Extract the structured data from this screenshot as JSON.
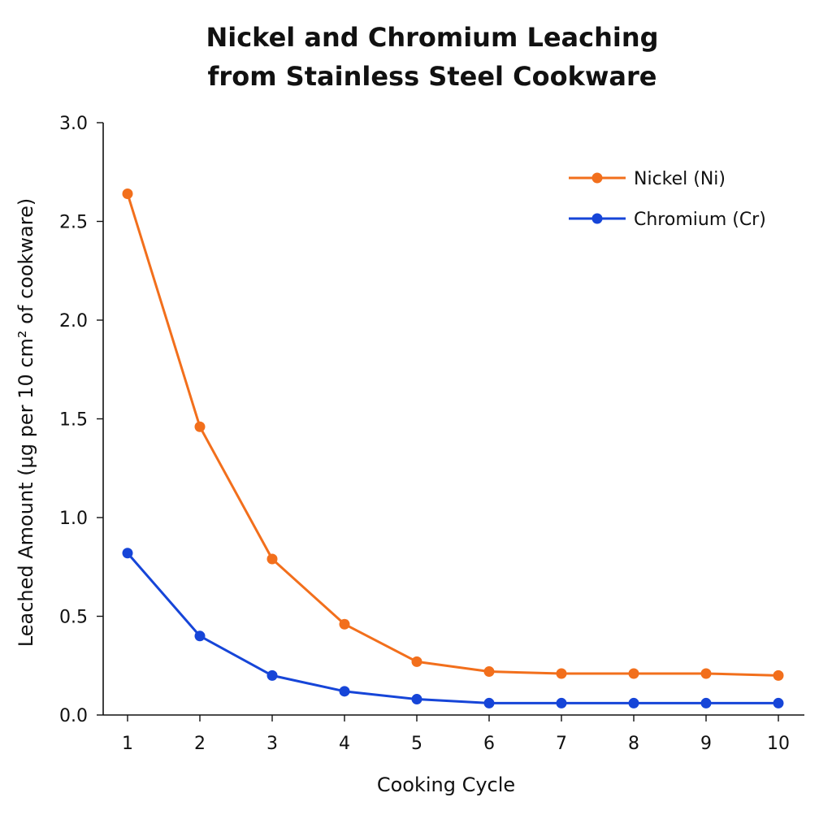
{
  "chart_data": {
    "type": "line",
    "title_lines": [
      "Nickel and Chromium Leaching",
      "from Stainless Steel Cookware"
    ],
    "xlabel": "Cooking Cycle",
    "ylabel": "Leached Amount (μg per 10 cm² of cookware)",
    "x": [
      1,
      2,
      3,
      4,
      5,
      6,
      7,
      8,
      9,
      10
    ],
    "x_tick_labels": [
      "1",
      "2",
      "3",
      "4",
      "5",
      "6",
      "7",
      "8",
      "9",
      "10"
    ],
    "ylim": [
      0,
      3.0
    ],
    "y_ticks": [
      0,
      0.5,
      1.0,
      1.5,
      2.0,
      2.5,
      3.0
    ],
    "y_tick_labels": [
      "0.0",
      "0.5",
      "1.0",
      "1.5",
      "2.0",
      "2.5",
      "3.0"
    ],
    "grid": false,
    "legend_position": "top-right",
    "series": [
      {
        "name": "Nickel (Ni)",
        "color": "#F26F1C",
        "values": [
          2.64,
          1.46,
          0.79,
          0.46,
          0.27,
          0.22,
          0.21,
          0.21,
          0.21,
          0.2
        ]
      },
      {
        "name": "Chromium (Cr)",
        "color": "#1645D8",
        "values": [
          0.82,
          0.4,
          0.2,
          0.12,
          0.08,
          0.06,
          0.06,
          0.06,
          0.06,
          0.06
        ]
      }
    ]
  }
}
